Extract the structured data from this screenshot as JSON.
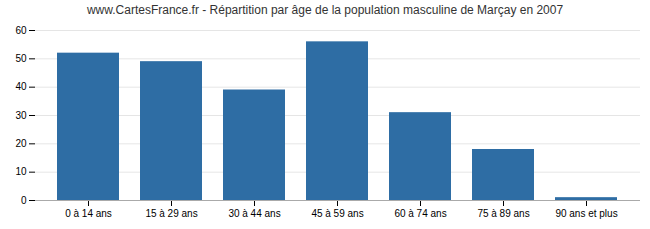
{
  "chart_data": {
    "type": "bar",
    "title": "www.CartesFrance.fr - Répartition par âge de la population masculine de Marçay en 2007",
    "categories": [
      "0 à 14 ans",
      "15 à 29 ans",
      "30 à 44 ans",
      "45 à 59 ans",
      "60 à 74 ans",
      "75 à 89 ans",
      "90 ans et plus"
    ],
    "values": [
      52,
      49,
      39,
      56,
      31,
      18,
      1
    ],
    "color": "#2e6da4",
    "ylim": [
      0,
      60
    ],
    "yticks": [
      0,
      10,
      20,
      30,
      40,
      50,
      60
    ],
    "grid": true
  }
}
